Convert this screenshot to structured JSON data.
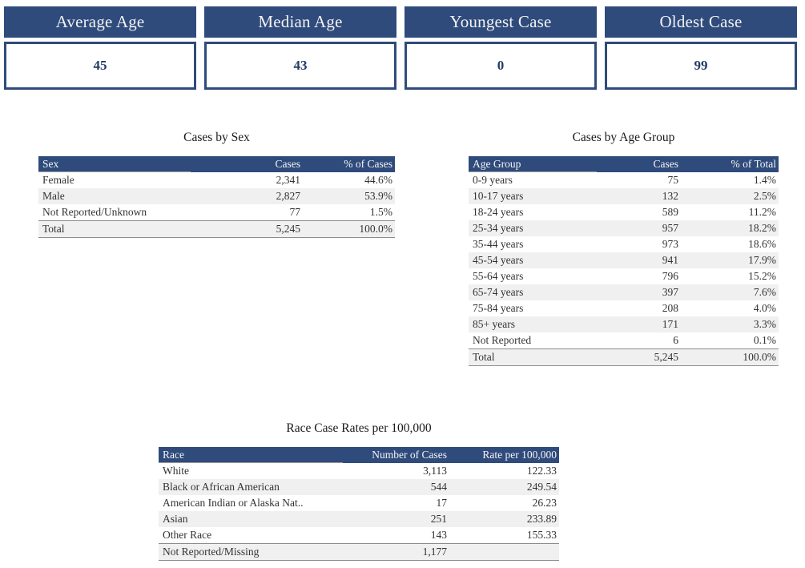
{
  "colors": {
    "header_blue": "#2F4B7C",
    "row_alt": "#F0F0F0",
    "line_gray": "#8C8C8C",
    "cell_text": "#333333",
    "header_text": "#F5F5F5",
    "kpi_label_text": "#F2F2F2",
    "kpi_value_text": "#243A66",
    "title_text": "#1A1A1A"
  },
  "kpis": [
    {
      "label": "Average Age",
      "value": "45"
    },
    {
      "label": "Median Age",
      "value": "43"
    },
    {
      "label": "Youngest Case",
      "value": "0"
    },
    {
      "label": "Oldest Case",
      "value": "99"
    }
  ],
  "tables": {
    "sex": {
      "title": "Cases by Sex",
      "columns": [
        "Sex",
        "Cases",
        "% of Cases"
      ],
      "rows": [
        [
          "Female",
          "2,341",
          "44.6%"
        ],
        [
          "Male",
          "2,827",
          "53.9%"
        ],
        [
          "Not Reported/Unknown",
          "77",
          "1.5%"
        ],
        [
          "Total",
          "5,245",
          "100.0%"
        ]
      ]
    },
    "age": {
      "title": "Cases by Age Group",
      "columns": [
        "Age Group",
        "Cases",
        "% of Total"
      ],
      "rows": [
        [
          "0-9 years",
          "75",
          "1.4%"
        ],
        [
          "10-17 years",
          "132",
          "2.5%"
        ],
        [
          "18-24 years",
          "589",
          "11.2%"
        ],
        [
          "25-34 years",
          "957",
          "18.2%"
        ],
        [
          "35-44 years",
          "973",
          "18.6%"
        ],
        [
          "45-54 years",
          "941",
          "17.9%"
        ],
        [
          "55-64 years",
          "796",
          "15.2%"
        ],
        [
          "65-74 years",
          "397",
          "7.6%"
        ],
        [
          "75-84 years",
          "208",
          "4.0%"
        ],
        [
          "85+ years",
          "171",
          "3.3%"
        ],
        [
          "Not Reported",
          "6",
          "0.1%"
        ],
        [
          "Total",
          "5,245",
          "100.0%"
        ]
      ]
    },
    "race": {
      "title": "Race Case Rates per 100,000",
      "columns": [
        "Race",
        "Number of Cases",
        "Rate per 100,000"
      ],
      "rows": [
        [
          "White",
          "3,113",
          "122.33"
        ],
        [
          "Black or African American",
          "544",
          "249.54"
        ],
        [
          "American Indian or Alaska Nat..",
          "17",
          "26.23"
        ],
        [
          "Asian",
          "251",
          "233.89"
        ],
        [
          "Other Race",
          "143",
          "155.33"
        ],
        [
          "Not Reported/Missing",
          "1,177",
          ""
        ]
      ]
    }
  }
}
